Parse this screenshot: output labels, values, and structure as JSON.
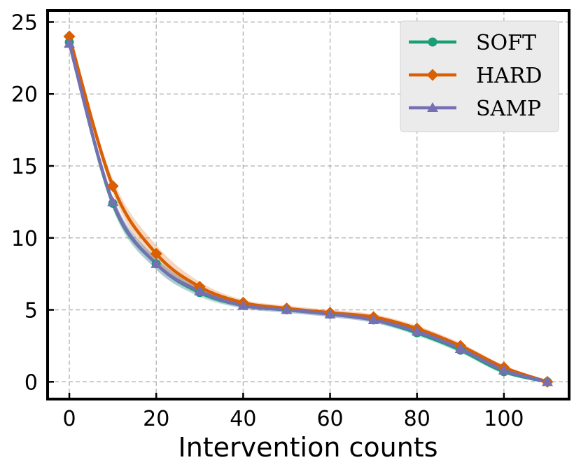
{
  "chart_data": {
    "type": "line",
    "title": "",
    "xlabel": "Intervention counts",
    "ylabel": "",
    "xlim": [
      -5,
      115
    ],
    "ylim": [
      -1.2,
      25.8
    ],
    "xticks": [
      0,
      20,
      40,
      60,
      80,
      100
    ],
    "yticks": [
      0,
      5,
      10,
      15,
      20,
      25
    ],
    "grid": true,
    "legend_position": "top-right",
    "x": [
      0,
      10,
      20,
      30,
      40,
      50,
      60,
      70,
      80,
      90,
      100,
      110
    ],
    "series": [
      {
        "name": "SOFT",
        "color": "#1b9e77",
        "marker": "circle",
        "values": [
          23.6,
          12.4,
          8.2,
          6.2,
          5.3,
          5.0,
          4.7,
          4.3,
          3.4,
          2.2,
          0.7,
          0.0
        ],
        "band": [
          0.2,
          0.4,
          0.4,
          0.3,
          0.2,
          0.2,
          0.2,
          0.2,
          0.2,
          0.2,
          0.15,
          0.05
        ]
      },
      {
        "name": "HARD",
        "color": "#d95f02",
        "marker": "diamond",
        "values": [
          24.0,
          13.6,
          8.9,
          6.6,
          5.5,
          5.1,
          4.8,
          4.5,
          3.7,
          2.5,
          1.0,
          0.0
        ],
        "band": [
          0.2,
          0.5,
          0.6,
          0.35,
          0.2,
          0.2,
          0.2,
          0.2,
          0.2,
          0.2,
          0.15,
          0.05
        ]
      },
      {
        "name": "SAMP",
        "color": "#7570b3",
        "marker": "triangle",
        "values": [
          23.5,
          12.5,
          8.2,
          6.3,
          5.3,
          5.0,
          4.7,
          4.3,
          3.5,
          2.3,
          0.8,
          0.0
        ],
        "band": [
          0.2,
          0.4,
          0.4,
          0.3,
          0.2,
          0.2,
          0.2,
          0.2,
          0.2,
          0.2,
          0.15,
          0.05
        ]
      }
    ]
  }
}
